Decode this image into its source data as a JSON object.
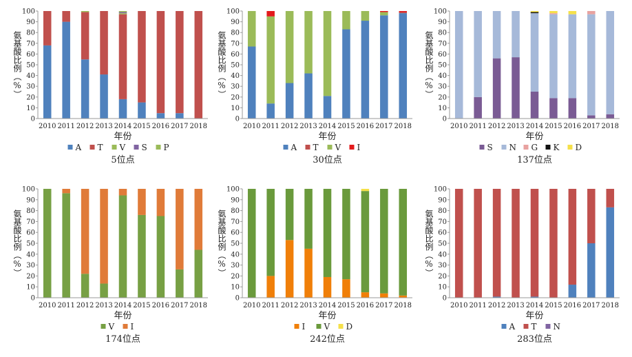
{
  "chart_data": [
    {
      "type": "bar",
      "stacked": true,
      "title": "5位点",
      "xlabel": "年份",
      "ylabel": "氨基酸比例（%）",
      "categories": [
        "2010",
        "2011",
        "2012",
        "2013",
        "2014",
        "2015",
        "2016",
        "2017",
        "2018"
      ],
      "ylim": [
        0,
        100
      ],
      "yticks": [
        0,
        10,
        20,
        30,
        40,
        50,
        60,
        70,
        80,
        90,
        100
      ],
      "series": [
        {
          "name": "A",
          "color": "#4f81bd",
          "values": [
            68,
            90,
            55,
            41,
            18,
            15,
            5,
            5,
            0
          ]
        },
        {
          "name": "T",
          "color": "#c0504d",
          "values": [
            32,
            10,
            44,
            59,
            79,
            85,
            95,
            95,
            100
          ]
        },
        {
          "name": "V",
          "color": "#9bbb59",
          "values": [
            0,
            0,
            1,
            0,
            1,
            0,
            0,
            0,
            0
          ]
        },
        {
          "name": "S",
          "color": "#8064a2",
          "values": [
            0,
            0,
            0,
            0,
            1,
            0,
            0,
            0,
            0
          ]
        },
        {
          "name": "P",
          "color": "#9bbb59",
          "values": [
            0,
            0,
            0,
            0,
            1,
            0,
            0,
            0,
            0
          ]
        }
      ]
    },
    {
      "type": "bar",
      "stacked": true,
      "title": "30位点",
      "xlabel": "年份",
      "ylabel": "氨基酸比例（%）",
      "categories": [
        "2010",
        "2011",
        "2012",
        "2013",
        "2014",
        "2015",
        "2016",
        "2017",
        "2018"
      ],
      "ylim": [
        0,
        100
      ],
      "yticks": [
        0,
        10,
        20,
        30,
        40,
        50,
        60,
        70,
        80,
        90,
        100
      ],
      "series": [
        {
          "name": "A",
          "color": "#4f81bd",
          "values": [
            67,
            14,
            33,
            42,
            21,
            83,
            91,
            96,
            98
          ]
        },
        {
          "name": "T",
          "color": "#c0504d",
          "values": [
            0,
            0,
            0,
            0,
            0,
            0,
            0,
            0,
            1
          ]
        },
        {
          "name": "V",
          "color": "#9bbb59",
          "values": [
            33,
            81,
            67,
            58,
            79,
            17,
            9,
            3,
            0
          ]
        },
        {
          "name": "I",
          "color": "#e31a1c",
          "values": [
            0,
            5,
            0,
            0,
            0,
            0,
            0,
            1,
            1
          ]
        }
      ]
    },
    {
      "type": "bar",
      "stacked": true,
      "title": "137位点",
      "xlabel": "年份",
      "ylabel": "氨基酸比例（%）",
      "categories": [
        "2010",
        "2011",
        "2012",
        "2013",
        "2014",
        "2015",
        "2016",
        "2017",
        "2018"
      ],
      "ylim": [
        0,
        100
      ],
      "yticks": [
        0,
        10,
        20,
        30,
        40,
        50,
        60,
        70,
        80,
        90,
        100
      ],
      "series": [
        {
          "name": "S",
          "color": "#7a5b94",
          "values": [
            0,
            20,
            56,
            57,
            25,
            19,
            19,
            3,
            4
          ]
        },
        {
          "name": "N",
          "color": "#a6b9d9",
          "values": [
            100,
            80,
            44,
            43,
            73,
            78,
            78,
            94,
            96
          ]
        },
        {
          "name": "G",
          "color": "#e8a2a0",
          "values": [
            0,
            0,
            0,
            0,
            0,
            1,
            0,
            3,
            0
          ]
        },
        {
          "name": "K",
          "color": "#111111",
          "values": [
            0,
            0,
            0,
            0,
            1,
            0,
            0,
            0,
            0
          ]
        },
        {
          "name": "D",
          "color": "#f5e04a",
          "values": [
            0,
            0,
            0,
            0,
            1,
            2,
            3,
            0,
            0
          ]
        }
      ]
    },
    {
      "type": "bar",
      "stacked": true,
      "title": "174位点",
      "xlabel": "年份",
      "ylabel": "氨基酸比例（%）",
      "categories": [
        "2010",
        "2011",
        "2012",
        "2013",
        "2014",
        "2015",
        "2016",
        "2017",
        "2018"
      ],
      "ylim": [
        0,
        100
      ],
      "yticks": [
        0,
        10,
        20,
        30,
        40,
        50,
        60,
        70,
        80,
        90,
        100
      ],
      "series": [
        {
          "name": "V",
          "color": "#77a044",
          "values": [
            100,
            96,
            22,
            13,
            94,
            76,
            75,
            26,
            44
          ]
        },
        {
          "name": "I",
          "color": "#e07b39",
          "values": [
            0,
            4,
            78,
            87,
            6,
            24,
            25,
            74,
            56
          ]
        }
      ]
    },
    {
      "type": "bar",
      "stacked": true,
      "title": "242位点",
      "xlabel": "年份",
      "ylabel": "氨基酸比例（%）",
      "categories": [
        "2010",
        "2011",
        "2012",
        "2013",
        "2014",
        "2015",
        "2016",
        "2017",
        "2018"
      ],
      "ylim": [
        0,
        100
      ],
      "yticks": [
        0,
        10,
        20,
        30,
        40,
        50,
        60,
        70,
        80,
        90,
        100
      ],
      "series": [
        {
          "name": "I",
          "color": "#f07f09",
          "values": [
            0,
            20,
            53,
            45,
            19,
            17,
            5,
            4,
            2
          ]
        },
        {
          "name": "V",
          "color": "#6a9a3c",
          "values": [
            100,
            80,
            47,
            55,
            81,
            83,
            93,
            96,
            98
          ]
        },
        {
          "name": "D",
          "color": "#f5e04a",
          "values": [
            0,
            0,
            0,
            0,
            0,
            0,
            2,
            0,
            0
          ]
        }
      ]
    },
    {
      "type": "bar",
      "stacked": true,
      "title": "283位点",
      "xlabel": "年份",
      "ylabel": "氨基酸比例（%）",
      "categories": [
        "2010",
        "2011",
        "2012",
        "2013",
        "2014",
        "2015",
        "2016",
        "2017",
        "2018"
      ],
      "ylim": [
        0,
        100
      ],
      "yticks": [
        0,
        10,
        20,
        30,
        40,
        50,
        60,
        70,
        80,
        90,
        100
      ],
      "series": [
        {
          "name": "A",
          "color": "#4f81bd",
          "values": [
            0,
            0,
            1,
            0,
            1,
            0,
            12,
            50,
            83
          ]
        },
        {
          "name": "T",
          "color": "#c0504d",
          "values": [
            100,
            100,
            99,
            100,
            99,
            100,
            88,
            50,
            17
          ]
        },
        {
          "name": "N",
          "color": "#8064a2",
          "values": [
            0,
            0,
            0,
            0,
            0,
            0,
            0,
            0,
            0
          ]
        }
      ]
    }
  ]
}
